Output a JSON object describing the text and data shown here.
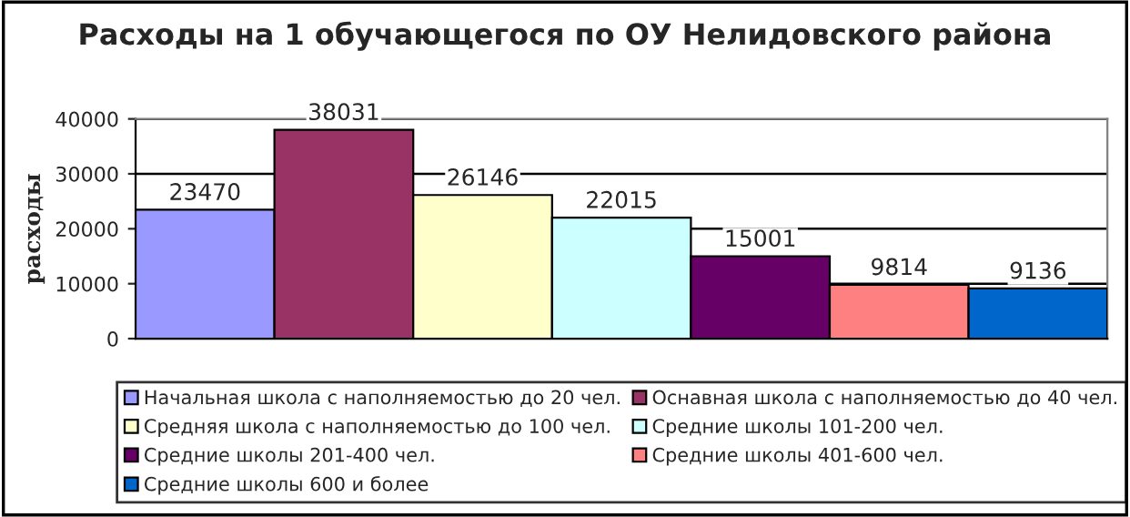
{
  "chart_data": {
    "type": "bar",
    "title": "Расходы на 1 обучающегося по ОУ Нелидовского района",
    "ylabel": "расходы",
    "categories": [
      null
    ],
    "series": [
      {
        "name": "Начальная школа с наполняемостью до 20 чел.",
        "color": "#9999ff",
        "values": [
          23470
        ]
      },
      {
        "name": "Оснавная школа с наполняемостью до 40 чел.",
        "color": "#993366",
        "values": [
          38031
        ]
      },
      {
        "name": "Средняя школа с наполняемостью до 100 чел.",
        "color": "#ffffcc",
        "values": [
          26146
        ]
      },
      {
        "name": "Средние школы 101-200 чел.",
        "color": "#ccffff",
        "values": [
          22015
        ]
      },
      {
        "name": "Средние школы 201-400 чел.",
        "color": "#660066",
        "values": [
          15001
        ]
      },
      {
        "name": "Средние школы 401-600 чел.",
        "color": "#ff8080",
        "values": [
          9814
        ]
      },
      {
        "name": "Средние школы 600 и более",
        "color": "#0066cc",
        "values": [
          9136
        ]
      }
    ],
    "ylim": [
      0,
      40000
    ],
    "yticks": [
      0,
      10000,
      20000,
      30000,
      40000
    ],
    "grid": "y",
    "legend": "bottom",
    "data_labels": true
  }
}
